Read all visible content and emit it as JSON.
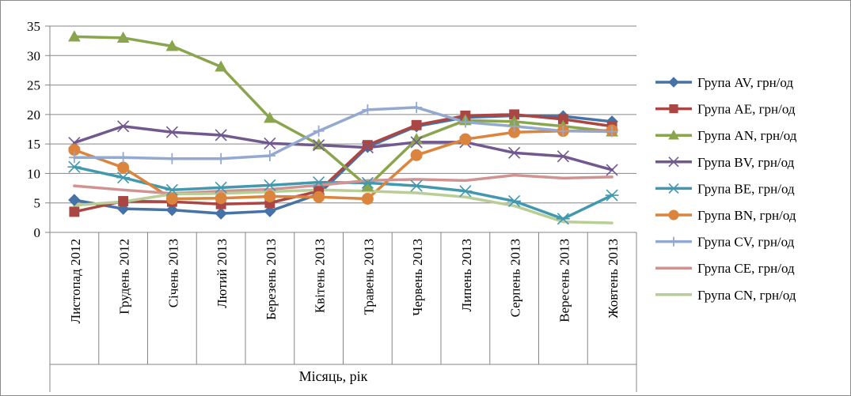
{
  "chart_data": {
    "type": "line",
    "title": "",
    "xlabel": "Місяць, рік",
    "ylabel": "",
    "ylim": [
      0,
      35
    ],
    "y_ticks": [
      0,
      5,
      10,
      15,
      20,
      25,
      30,
      35
    ],
    "grid": "horizontal",
    "legend_position": "right",
    "categories": [
      "Листопад 2012",
      "Грудень 2012",
      "Січень 2013",
      "Лютий 2013",
      "Березень 2013",
      "Квітень 2013",
      "Травень 2013",
      "Червень 2013",
      "Липень 2013",
      "Серпень 2013",
      "Вересень 2013",
      "Жовтень 2013"
    ],
    "series": [
      {
        "name": "Група AV, грн/од",
        "color": "#4572a7",
        "marker": "diamond",
        "values": [
          5.5,
          4.0,
          3.8,
          3.2,
          3.6,
          6.5,
          14.5,
          18.0,
          19.5,
          19.8,
          19.7,
          18.8
        ]
      },
      {
        "name": "Група AE, грн/од",
        "color": "#aa4643",
        "marker": "square",
        "values": [
          3.5,
          5.3,
          5.2,
          4.8,
          5.0,
          7.0,
          14.8,
          18.2,
          19.8,
          20.0,
          19.2,
          18.0
        ]
      },
      {
        "name": "Група AN, грн/од",
        "color": "#89a54e",
        "marker": "triangle",
        "values": [
          33.2,
          33.0,
          31.6,
          28.1,
          19.4,
          14.9,
          7.8,
          15.8,
          19.0,
          18.8,
          18.0,
          17.1
        ]
      },
      {
        "name": "Група BV, грн/од",
        "color": "#71588f",
        "marker": "x",
        "values": [
          15.2,
          18.0,
          17.0,
          16.5,
          15.1,
          14.8,
          14.4,
          15.3,
          15.3,
          13.5,
          12.9,
          10.6
        ]
      },
      {
        "name": "Група BE, грн/од",
        "color": "#4198af",
        "marker": "asterisk",
        "values": [
          11.1,
          9.3,
          7.2,
          7.6,
          8.0,
          8.5,
          8.4,
          7.9,
          7.0,
          5.3,
          2.3,
          6.3
        ]
      },
      {
        "name": "Група BN, грн/од",
        "color": "#db843d",
        "marker": "circle",
        "values": [
          14.0,
          11.0,
          5.7,
          5.8,
          6.1,
          6.0,
          5.7,
          13.1,
          15.8,
          17.0,
          17.2,
          17.3
        ]
      },
      {
        "name": "Група CV, грн/од",
        "color": "#93a9cf",
        "marker": "plus",
        "values": [
          12.7,
          12.7,
          12.5,
          12.5,
          13.0,
          17.2,
          20.8,
          21.2,
          18.7,
          18.0,
          17.2,
          17.1
        ]
      },
      {
        "name": "Група CE, грн/од",
        "color": "#d19392",
        "marker": "none",
        "values": [
          7.9,
          7.2,
          6.6,
          7.0,
          7.3,
          8.0,
          8.8,
          9.0,
          8.8,
          9.7,
          9.2,
          9.4
        ]
      },
      {
        "name": "Група CN, грн/од",
        "color": "#b9cd96",
        "marker": "none",
        "values": [
          4.6,
          5.2,
          6.5,
          6.6,
          6.9,
          7.2,
          7.0,
          6.7,
          6.0,
          4.5,
          1.8,
          1.6
        ]
      }
    ]
  }
}
